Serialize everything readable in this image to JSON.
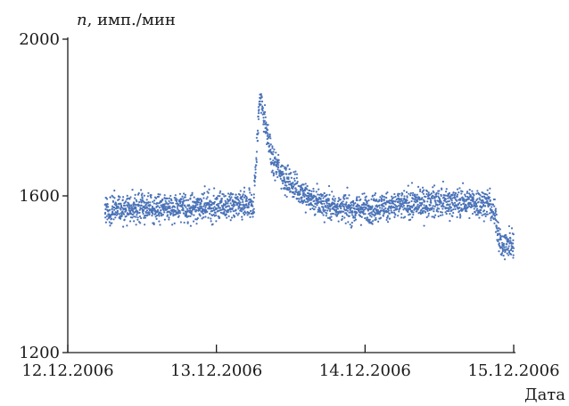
{
  "chart_data": {
    "type": "scatter",
    "ylabel_var": "n",
    "ylabel_unit": ", имп./мин",
    "xlabel": "Дата",
    "ylim": [
      1200,
      2000
    ],
    "yticks": [
      {
        "value": 2000,
        "label": "2000"
      },
      {
        "value": 1600,
        "label": "1600"
      },
      {
        "value": 1200,
        "label": "1200"
      }
    ],
    "xlim": [
      "2006-12-12",
      "2006-12-15"
    ],
    "xticks": [
      {
        "value": "2006-12-12",
        "label": "12.12.2006"
      },
      {
        "value": "2006-12-13",
        "label": "13.12.2006"
      },
      {
        "value": "2006-12-14",
        "label": "14.12.2006"
      },
      {
        "value": "2006-12-15",
        "label": "15.12.2006"
      }
    ],
    "grid": false,
    "color": "#4a72b8",
    "series": [
      {
        "trend_x": [
          "2006-12-12 06:00",
          "2006-12-13 06:00",
          "2006-12-13 07:00",
          "2006-12-13 09:00",
          "2006-12-13 12:00",
          "2006-12-13 16:00",
          "2006-12-13 22:00",
          "2006-12-14 12:00",
          "2006-12-14 20:00",
          "2006-12-14 21:00",
          "2006-12-14 22:00",
          "2006-12-15 00:00"
        ],
        "trend_y": [
          1565,
          1575,
          1860,
          1690,
          1630,
          1585,
          1565,
          1585,
          1580,
          1550,
          1470,
          1480
        ],
        "scatter_spread": 35
      }
    ]
  }
}
